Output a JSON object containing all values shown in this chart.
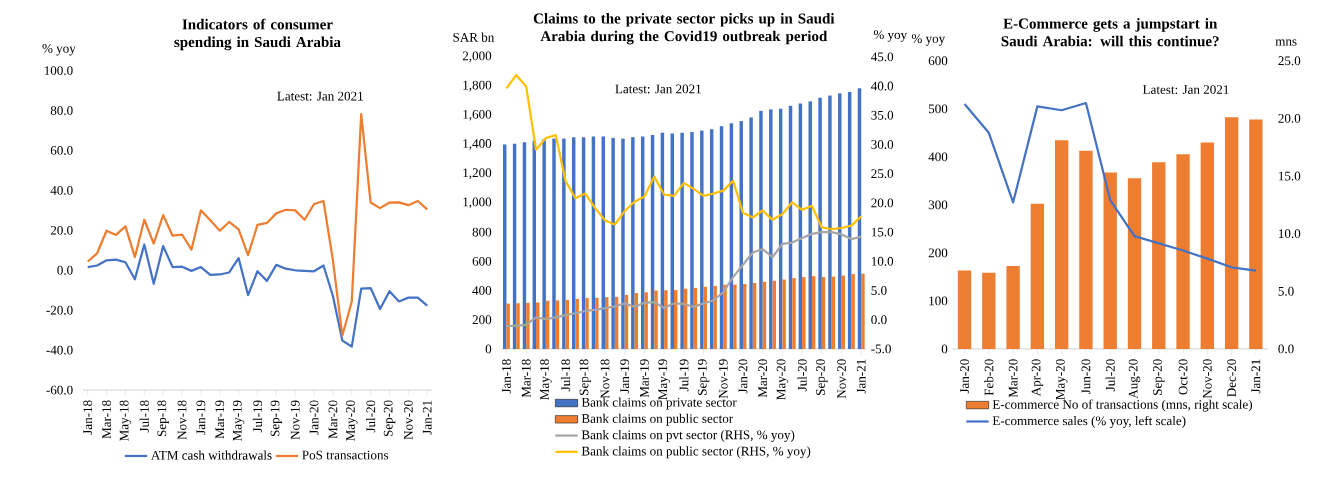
{
  "chart_data": [
    {
      "type": "line",
      "title": "Indicators of consumer spending in Saudi Arabia",
      "ylabel": "% yoy",
      "annotations": [
        "Latest: Jan 2021"
      ],
      "categories": [
        "Jan-18",
        null,
        "Mar-18",
        null,
        "May-18",
        null,
        "Jul-18",
        null,
        "Sep-18",
        null,
        "Nov-18",
        null,
        "Jan-19",
        null,
        "Mar-19",
        null,
        "May-19",
        null,
        "Jul-19",
        null,
        "Sep-19",
        null,
        "Nov-19",
        null,
        "Jan-20",
        null,
        "Mar-20",
        null,
        "May-20",
        null,
        "Jul-20",
        null,
        "Sep-20",
        null,
        "Nov-20",
        null,
        "Jan-21"
      ],
      "series": [
        {
          "name": "ATM cash withdrawals",
          "color": "#4472c4",
          "values": [
            1.6,
            2.4,
            5,
            5.3,
            4,
            -4.5,
            12.9,
            -6.8,
            12.1,
            1.6,
            1.8,
            -0.3,
            1.6,
            -2.3,
            -2.1,
            -1.1,
            6.1,
            -12.4,
            -0.5,
            -5.3,
            2.7,
            0.8,
            0,
            -0.3,
            -0.5,
            2.4,
            -12.9,
            -35.2,
            -38.2,
            -9.2,
            -8.9,
            -19.4,
            -10.5,
            -15.6,
            -13.7,
            -13.7,
            -17.7
          ]
        },
        {
          "name": "PoS transactions",
          "color": "#ed7d31",
          "values": [
            4.4,
            8.5,
            19.8,
            17.7,
            22,
            6.6,
            25.3,
            13.4,
            27.6,
            17.3,
            17.9,
            10.3,
            30,
            25,
            19.8,
            24.2,
            20.5,
            7.6,
            22.7,
            23.7,
            28.5,
            30.3,
            30,
            25.3,
            33.2,
            34.7,
            5,
            -32.7,
            -15.6,
            78.2,
            33.9,
            31.1,
            33.9,
            34,
            32.6,
            34.7,
            30.5
          ]
        }
      ],
      "ylim": [
        -60,
        100
      ],
      "yticks": [
        {
          "value": -60,
          "label": "-60.0"
        },
        {
          "value": -40,
          "label": "-40.0"
        },
        {
          "value": -20,
          "label": "-20.0"
        },
        {
          "value": 0,
          "label": "0.0"
        },
        {
          "value": 20,
          "label": "20.0"
        },
        {
          "value": 40,
          "label": "40.0"
        },
        {
          "value": 60,
          "label": "60.0"
        },
        {
          "value": 80,
          "label": "80.0"
        },
        {
          "value": 100,
          "label": "100.0"
        }
      ],
      "legend": "bottom"
    },
    {
      "type": "bar",
      "title": "Claims to the private sector picks up in Saudi Arabia during the Covid19 outbreak period",
      "ylabel": "SAR bn",
      "y2label": "% yoy",
      "annotations": [
        "Latest: Jan 2021"
      ],
      "categories": [
        "Jan-18",
        null,
        "Mar-18",
        null,
        "May-18",
        null,
        "Jul-18",
        null,
        "Sep-18",
        null,
        "Nov-18",
        null,
        "Jan-19",
        null,
        "Mar-19",
        null,
        "May-19",
        null,
        "Jul-19",
        null,
        "Sep-19",
        null,
        "Nov-19",
        null,
        "Jan-20",
        null,
        "Mar-20",
        null,
        "May-20",
        null,
        "Jul-20",
        null,
        "Sep-20",
        null,
        "Nov-20",
        null,
        "Jan-21"
      ],
      "series": [
        {
          "name": "Bank claims on private sector",
          "color": "#4472c4",
          "values": [
            1400,
            1405,
            1415,
            1425,
            1435,
            1440,
            1440,
            1450,
            1450,
            1455,
            1455,
            1445,
            1440,
            1450,
            1455,
            1465,
            1480,
            1475,
            1480,
            1485,
            1495,
            1505,
            1525,
            1545,
            1560,
            1585,
            1630,
            1640,
            1645,
            1665,
            1680,
            1695,
            1720,
            1735,
            1750,
            1760,
            1785
          ]
        },
        {
          "name": "Bank claims on public sector",
          "color": "#ed7d31",
          "values": [
            310,
            313,
            316,
            318,
            330,
            332,
            335,
            342,
            348,
            350,
            355,
            357,
            370,
            383,
            388,
            400,
            402,
            403,
            412,
            418,
            425,
            432,
            440,
            440,
            445,
            452,
            460,
            467,
            475,
            485,
            492,
            498,
            492,
            495,
            502,
            512,
            515
          ]
        },
        {
          "name": "Bank claims on pvt sector (RHS, % yoy)",
          "type": "line",
          "axis": "y2",
          "color": "#a5a5a5",
          "values": [
            -1.1,
            -1.0,
            -0.9,
            0.4,
            0.1,
            0.4,
            0.8,
            1.1,
            1.5,
            1.7,
            2.0,
            2.3,
            2.8,
            2.2,
            2.9,
            3.0,
            2.0,
            2.8,
            2.7,
            2.2,
            2.8,
            3.3,
            4.7,
            7.3,
            9.4,
            11.5,
            12.1,
            10.7,
            13.0,
            13.2,
            14.0,
            14.7,
            15.0,
            15.0,
            14.6,
            13.8,
            14.2
          ]
        },
        {
          "name": "Bank claims on public sector (RHS, % yoy)",
          "type": "line",
          "axis": "y2",
          "color": "#ffc000",
          "values": [
            39.6,
            41.9,
            39.9,
            29.1,
            31.1,
            31.6,
            23.7,
            20.8,
            21.6,
            19.1,
            17.0,
            16.3,
            18.6,
            20.2,
            21.1,
            24.5,
            21.4,
            21.2,
            23.4,
            22.4,
            21.2,
            21.6,
            22.1,
            23.8,
            18.3,
            17.5,
            18.7,
            17.1,
            18.1,
            20.1,
            18.8,
            19.5,
            15.8,
            15.5,
            15.7,
            16.1,
            17.7
          ]
        }
      ],
      "ylim": [
        0,
        2000
      ],
      "yticks": [
        0,
        200,
        400,
        600,
        800,
        {
          "value": 1000,
          "label": "1,000"
        },
        {
          "value": 1200,
          "label": "1,200"
        },
        {
          "value": 1400,
          "label": "1,400"
        },
        {
          "value": 1600,
          "label": "1,600"
        },
        {
          "value": 1800,
          "label": "1,800"
        },
        {
          "value": 2000,
          "label": "2,000"
        }
      ],
      "y2lim": [
        -5,
        45
      ],
      "y2ticks": [
        {
          "value": -5,
          "label": "-5.0"
        },
        {
          "value": 0,
          "label": "0.0"
        },
        {
          "value": 5,
          "label": "5.0"
        },
        {
          "value": 10,
          "label": "10.0"
        },
        {
          "value": 15,
          "label": "15.0"
        },
        {
          "value": 20,
          "label": "20.0"
        },
        {
          "value": 25,
          "label": "25.0"
        },
        {
          "value": 30,
          "label": "30.0"
        },
        {
          "value": 35,
          "label": "35.0"
        },
        {
          "value": 40,
          "label": "40.0"
        },
        {
          "value": 45,
          "label": "45.0"
        }
      ],
      "legend": "bottom"
    },
    {
      "type": "bar",
      "title": "E-Commerce gets a jumpstart in Saudi Arabia: will this continue?",
      "ylabel": "% yoy",
      "y2label": "mns",
      "annotations": [
        "Latest: Jan 2021"
      ],
      "categories": [
        "Jan-20",
        "Feb-20",
        "Mar-20",
        "Apr-20",
        "May-20",
        "Jun-20",
        "Jul-20",
        "Aug-20",
        "Sep-20",
        "Oct-20",
        "Nov-20",
        "Dec-20",
        "Jan-21"
      ],
      "series": [
        {
          "name": "E-commerce No of transactions (mns, right scale)",
          "axis": "y2",
          "color": "#ed7d31",
          "values": [
            6.8,
            6.6,
            7.2,
            12.6,
            18.1,
            17.2,
            15.3,
            14.8,
            16.2,
            16.9,
            17.9,
            20.1,
            19.9
          ]
        },
        {
          "name": "E-commerce sales (% yoy, left scale)",
          "type": "line",
          "color": "#4472c4",
          "values": [
            510,
            450,
            305,
            505,
            497,
            512,
            310,
            235,
            220,
            205,
            188,
            170,
            163
          ]
        }
      ],
      "ylim": [
        0,
        600
      ],
      "yticks": [
        0,
        100,
        200,
        300,
        400,
        500,
        600
      ],
      "y2lim": [
        0,
        25
      ],
      "y2ticks": [
        {
          "value": 0,
          "label": "0.0"
        },
        {
          "value": 5,
          "label": "5.0"
        },
        {
          "value": 10,
          "label": "10.0"
        },
        {
          "value": 15,
          "label": "15.0"
        },
        {
          "value": 20,
          "label": "20.0"
        },
        {
          "value": 25,
          "label": "25.0"
        }
      ],
      "legend": "bottom"
    }
  ]
}
